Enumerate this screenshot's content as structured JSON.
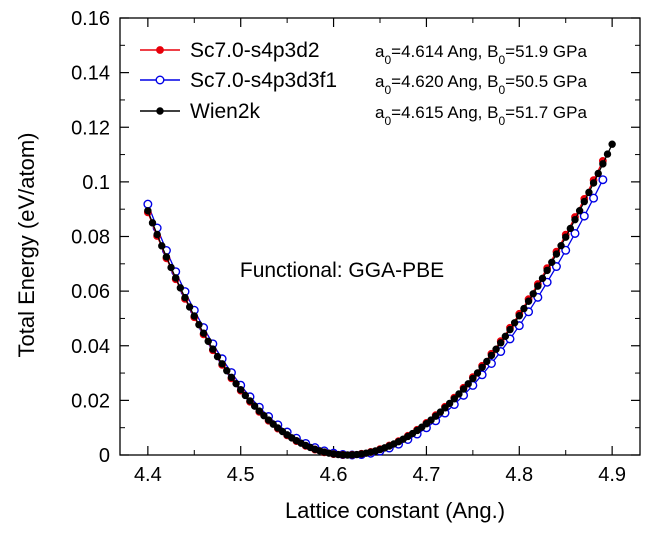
{
  "chart_data": {
    "type": "line",
    "xlabel": "Lattice constant (Ang.)",
    "ylabel": "Total Energy (eV/atom)",
    "xlim": [
      4.37,
      4.93
    ],
    "ylim": [
      0,
      0.16
    ],
    "xticks": [
      4.4,
      4.5,
      4.6,
      4.7,
      4.8,
      4.9
    ],
    "yticks": [
      0,
      0.02,
      0.04,
      0.06,
      0.08,
      0.1,
      0.12,
      0.14,
      0.16
    ],
    "xtick_labels": [
      "4.4",
      "4.5",
      "4.6",
      "4.7",
      "4.8",
      "4.9"
    ],
    "ytick_labels": [
      "0",
      "0.02",
      "0.04",
      "0.06",
      "0.08",
      "0.1",
      "0.12",
      "0.14",
      "0.16"
    ],
    "grid": false,
    "legend_position": "top-left",
    "annotation": "Functional: GGA-PBE",
    "series": [
      {
        "name": "Sc7.0-s4p3d2",
        "color": "#e8000b",
        "marker": "filled-diamond",
        "a0": 4.614,
        "B0_GPa": 51.9,
        "emin": 0.0,
        "step": 0.01,
        "x_end": 4.89,
        "fit_note": {
          "a_prefix": "a",
          "a_sub": "0",
          "a_value": "=4.614 Ang, ",
          "b_prefix": "B",
          "b_sub": "0",
          "b_value": "=51.9 GPa"
        }
      },
      {
        "name": "Sc7.0-s4p3d3f1",
        "color": "#0000e6",
        "marker": "open-circle",
        "a0": 4.62,
        "B0_GPa": 50.5,
        "emin": 0.0,
        "step": 0.01,
        "x_end": 4.89,
        "fit_note": {
          "a_prefix": "a",
          "a_sub": "0",
          "a_value": "=4.620 Ang, ",
          "b_prefix": "B",
          "b_sub": "0",
          "b_value": "=50.5 GPa"
        }
      },
      {
        "name": "Wien2k",
        "color": "#000000",
        "marker": "filled-circle",
        "a0": 4.615,
        "B0_GPa": 51.7,
        "emin": 0.0,
        "step": 0.005,
        "x_end": 4.9,
        "fit_note": {
          "a_prefix": "a",
          "a_sub": "0",
          "a_value": "=4.615 Ang, ",
          "b_prefix": "B",
          "b_sub": "0",
          "b_value": "=51.7 GPa"
        }
      }
    ]
  }
}
